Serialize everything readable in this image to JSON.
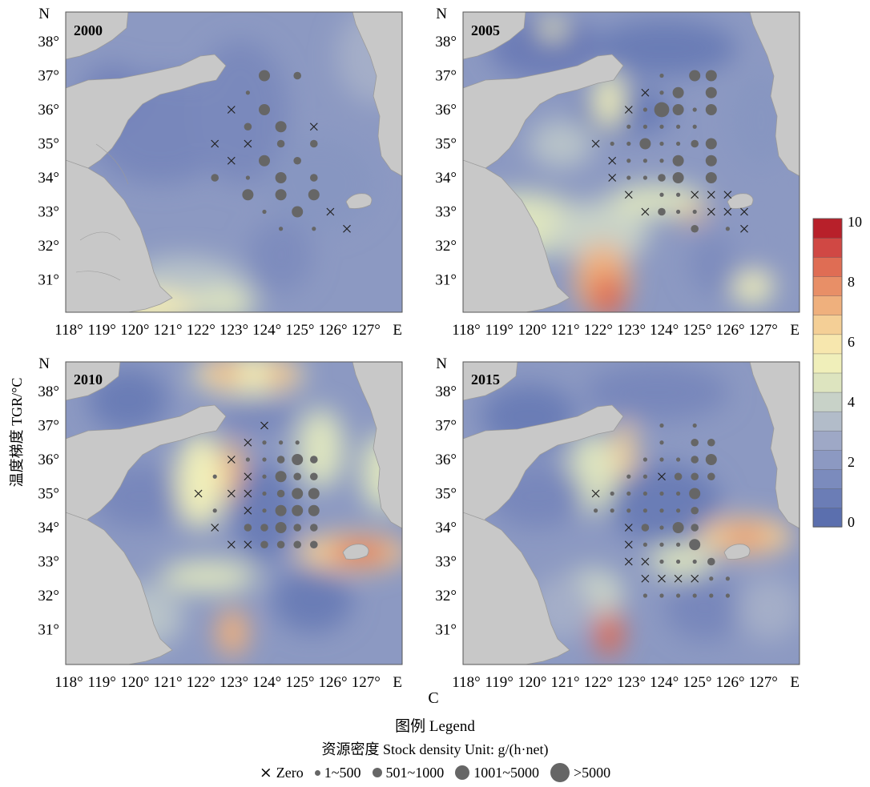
{
  "colors": {
    "land": "#c8c8c8",
    "dot": "#666666",
    "ramp": [
      "#5b6fae",
      "#6b7db6",
      "#7b8bbd",
      "#8c99c2",
      "#9ea8c6",
      "#b2bcc9",
      "#c8d2c8",
      "#dde4bf",
      "#f0efba",
      "#f7e7ae",
      "#f4cf96",
      "#efb07d",
      "#e88f67",
      "#df6d54",
      "#d04844",
      "#b8202a"
    ]
  },
  "panels": [
    {
      "id": "2000",
      "year": "2000"
    },
    {
      "id": "2005",
      "year": "2005"
    },
    {
      "id": "2010",
      "year": "2010"
    },
    {
      "id": "2015",
      "year": "2015"
    }
  ],
  "axes": {
    "lat_ticks": [
      "38°",
      "37°",
      "36°",
      "35°",
      "34°",
      "33°",
      "32°",
      "31°"
    ],
    "lon_ticks": [
      "118°",
      "119°",
      "120°",
      "121°",
      "122°",
      "123°",
      "124°",
      "125°",
      "126°",
      "127°"
    ],
    "north_label": "N",
    "east_label": "E"
  },
  "colorbar": {
    "title": "温度梯度 TGR/°C",
    "ticks": [
      "10",
      "8",
      "6",
      "4",
      "2",
      "0"
    ]
  },
  "panel_c_label": "C",
  "legend": {
    "title": "图例 Legend",
    "subtitle": "资源密度 Stock density   Unit: g/(h·net)",
    "items": [
      {
        "symbol": "zero",
        "label": "Zero"
      },
      {
        "symbol": "dot-1",
        "label": "1~500"
      },
      {
        "symbol": "dot-2",
        "label": "501~1000"
      },
      {
        "symbol": "dot-3",
        "label": "1001~5000"
      },
      {
        "symbol": "dot-4",
        "label": ">5000"
      }
    ]
  },
  "stations": {
    "2000": [
      [
        123,
        37,
        3
      ],
      [
        124,
        37,
        2
      ],
      [
        122,
        36,
        0
      ],
      [
        122.5,
        36.5,
        1
      ],
      [
        123,
        36,
        3
      ],
      [
        122.5,
        35.5,
        2
      ],
      [
        123.5,
        35.5,
        3
      ],
      [
        124.5,
        35.5,
        0
      ],
      [
        121.5,
        35,
        0
      ],
      [
        122.5,
        35,
        0
      ],
      [
        123.5,
        35,
        2
      ],
      [
        124.5,
        35,
        2
      ],
      [
        122,
        34.5,
        0
      ],
      [
        123,
        34.5,
        3
      ],
      [
        124,
        34.5,
        2
      ],
      [
        122.5,
        34,
        1
      ],
      [
        123.5,
        34,
        3
      ],
      [
        124.5,
        34,
        2
      ],
      [
        121.5,
        34,
        2
      ],
      [
        122.5,
        33.5,
        3
      ],
      [
        123.5,
        33.5,
        3
      ],
      [
        124.5,
        33.5,
        3
      ],
      [
        123,
        33,
        1
      ],
      [
        124,
        33,
        3
      ],
      [
        123.5,
        32.5,
        1
      ],
      [
        124.5,
        32.5,
        1
      ],
      [
        125,
        33,
        0
      ],
      [
        125.5,
        32.5,
        0
      ]
    ],
    "2005": [
      [
        123,
        37,
        1
      ],
      [
        124,
        37,
        3
      ],
      [
        124.5,
        37,
        3
      ],
      [
        122.5,
        36.5,
        0
      ],
      [
        123,
        36.5,
        1
      ],
      [
        123.5,
        36.5,
        3
      ],
      [
        124.5,
        36.5,
        3
      ],
      [
        122,
        36,
        0
      ],
      [
        122.5,
        36,
        1
      ],
      [
        123,
        36,
        4
      ],
      [
        123.5,
        36,
        3
      ],
      [
        124,
        36,
        1
      ],
      [
        124.5,
        36,
        3
      ],
      [
        122,
        35.5,
        1
      ],
      [
        122.5,
        35.5,
        1
      ],
      [
        123,
        35.5,
        1
      ],
      [
        123.5,
        35.5,
        1
      ],
      [
        124,
        35.5,
        1
      ],
      [
        121,
        35,
        0
      ],
      [
        121.5,
        35,
        1
      ],
      [
        122,
        35,
        1
      ],
      [
        122.5,
        35,
        3
      ],
      [
        123,
        35,
        1
      ],
      [
        123.5,
        35,
        1
      ],
      [
        124,
        35,
        2
      ],
      [
        124.5,
        35,
        3
      ],
      [
        121.5,
        34.5,
        0
      ],
      [
        122,
        34.5,
        1
      ],
      [
        122.5,
        34.5,
        1
      ],
      [
        123,
        34.5,
        1
      ],
      [
        123.5,
        34.5,
        3
      ],
      [
        124.5,
        34.5,
        3
      ],
      [
        121.5,
        34,
        0
      ],
      [
        122,
        34,
        1
      ],
      [
        122.5,
        34,
        1
      ],
      [
        123,
        34,
        2
      ],
      [
        123.5,
        34,
        3
      ],
      [
        124.5,
        34,
        3
      ],
      [
        122,
        33.5,
        0
      ],
      [
        123,
        33.5,
        1
      ],
      [
        123.5,
        33.5,
        1
      ],
      [
        124,
        33.5,
        0
      ],
      [
        124.5,
        33.5,
        0
      ],
      [
        125,
        33.5,
        0
      ],
      [
        122.5,
        33,
        0
      ],
      [
        123,
        33,
        2
      ],
      [
        123.5,
        33,
        1
      ],
      [
        124,
        33,
        1
      ],
      [
        124.5,
        33,
        0
      ],
      [
        125,
        33,
        0
      ],
      [
        125.5,
        33,
        0
      ],
      [
        124,
        32.5,
        2
      ],
      [
        125,
        32.5,
        1
      ],
      [
        125.5,
        32.5,
        0
      ]
    ],
    "2010": [
      [
        123,
        37,
        0
      ],
      [
        122.5,
        36.5,
        0
      ],
      [
        123,
        36.5,
        1
      ],
      [
        123.5,
        36.5,
        1
      ],
      [
        124,
        36.5,
        1
      ],
      [
        122,
        36,
        0
      ],
      [
        122.5,
        36,
        1
      ],
      [
        123,
        36,
        1
      ],
      [
        123.5,
        36,
        2
      ],
      [
        124,
        36,
        3
      ],
      [
        124.5,
        36,
        2
      ],
      [
        121.5,
        35.5,
        1
      ],
      [
        122.5,
        35.5,
        0
      ],
      [
        123,
        35.5,
        1
      ],
      [
        123.5,
        35.5,
        3
      ],
      [
        124,
        35.5,
        2
      ],
      [
        124.5,
        35.5,
        2
      ],
      [
        121,
        35,
        0
      ],
      [
        122,
        35,
        0
      ],
      [
        122.5,
        35,
        0
      ],
      [
        123,
        35,
        1
      ],
      [
        123.5,
        35,
        2
      ],
      [
        124,
        35,
        3
      ],
      [
        124.5,
        35,
        3
      ],
      [
        121.5,
        34.5,
        1
      ],
      [
        122.5,
        34.5,
        0
      ],
      [
        123,
        34.5,
        1
      ],
      [
        123.5,
        34.5,
        3
      ],
      [
        124,
        34.5,
        3
      ],
      [
        124.5,
        34.5,
        3
      ],
      [
        121.5,
        34,
        0
      ],
      [
        122.5,
        34,
        2
      ],
      [
        123,
        34,
        2
      ],
      [
        123.5,
        34,
        3
      ],
      [
        124,
        34,
        2
      ],
      [
        124.5,
        34,
        2
      ],
      [
        122,
        33.5,
        0
      ],
      [
        122.5,
        33.5,
        0
      ],
      [
        123,
        33.5,
        2
      ],
      [
        123.5,
        33.5,
        2
      ],
      [
        124,
        33.5,
        2
      ],
      [
        124.5,
        33.5,
        2
      ]
    ],
    "2015": [
      [
        123,
        37,
        1
      ],
      [
        124,
        37,
        1
      ],
      [
        123,
        36.5,
        1
      ],
      [
        124,
        36.5,
        2
      ],
      [
        124.5,
        36.5,
        2
      ],
      [
        122.5,
        36,
        1
      ],
      [
        123,
        36,
        1
      ],
      [
        123.5,
        36,
        1
      ],
      [
        124,
        36,
        2
      ],
      [
        124.5,
        36,
        3
      ],
      [
        122,
        35.5,
        1
      ],
      [
        122.5,
        35.5,
        1
      ],
      [
        123,
        35.5,
        0
      ],
      [
        123.5,
        35.5,
        2
      ],
      [
        124,
        35.5,
        2
      ],
      [
        124.5,
        35.5,
        2
      ],
      [
        121,
        35,
        0
      ],
      [
        121.5,
        35,
        1
      ],
      [
        122,
        35,
        1
      ],
      [
        122.5,
        35,
        1
      ],
      [
        123,
        35,
        1
      ],
      [
        123.5,
        35,
        1
      ],
      [
        124,
        35,
        3
      ],
      [
        121,
        34.5,
        1
      ],
      [
        121.5,
        34.5,
        1
      ],
      [
        122,
        34.5,
        1
      ],
      [
        122.5,
        34.5,
        1
      ],
      [
        123,
        34.5,
        1
      ],
      [
        123.5,
        34.5,
        1
      ],
      [
        124,
        34.5,
        2
      ],
      [
        122,
        34,
        0
      ],
      [
        122.5,
        34,
        2
      ],
      [
        123,
        34,
        1
      ],
      [
        123.5,
        34,
        3
      ],
      [
        124,
        34,
        2
      ],
      [
        122,
        33.5,
        0
      ],
      [
        122.5,
        33.5,
        1
      ],
      [
        123,
        33.5,
        1
      ],
      [
        123.5,
        33.5,
        1
      ],
      [
        124,
        33.5,
        3
      ],
      [
        122,
        33,
        0
      ],
      [
        122.5,
        33,
        0
      ],
      [
        123,
        33,
        1
      ],
      [
        123.5,
        33,
        1
      ],
      [
        124,
        33,
        1
      ],
      [
        124.5,
        33,
        2
      ],
      [
        122.5,
        32.5,
        0
      ],
      [
        123,
        32.5,
        0
      ],
      [
        123.5,
        32.5,
        0
      ],
      [
        124,
        32.5,
        0
      ],
      [
        124.5,
        32.5,
        1
      ],
      [
        125,
        32.5,
        1
      ],
      [
        122.5,
        32,
        1
      ],
      [
        123,
        32,
        1
      ],
      [
        123.5,
        32,
        1
      ],
      [
        124,
        32,
        1
      ],
      [
        124.5,
        32,
        1
      ],
      [
        125,
        32,
        1
      ]
    ]
  }
}
